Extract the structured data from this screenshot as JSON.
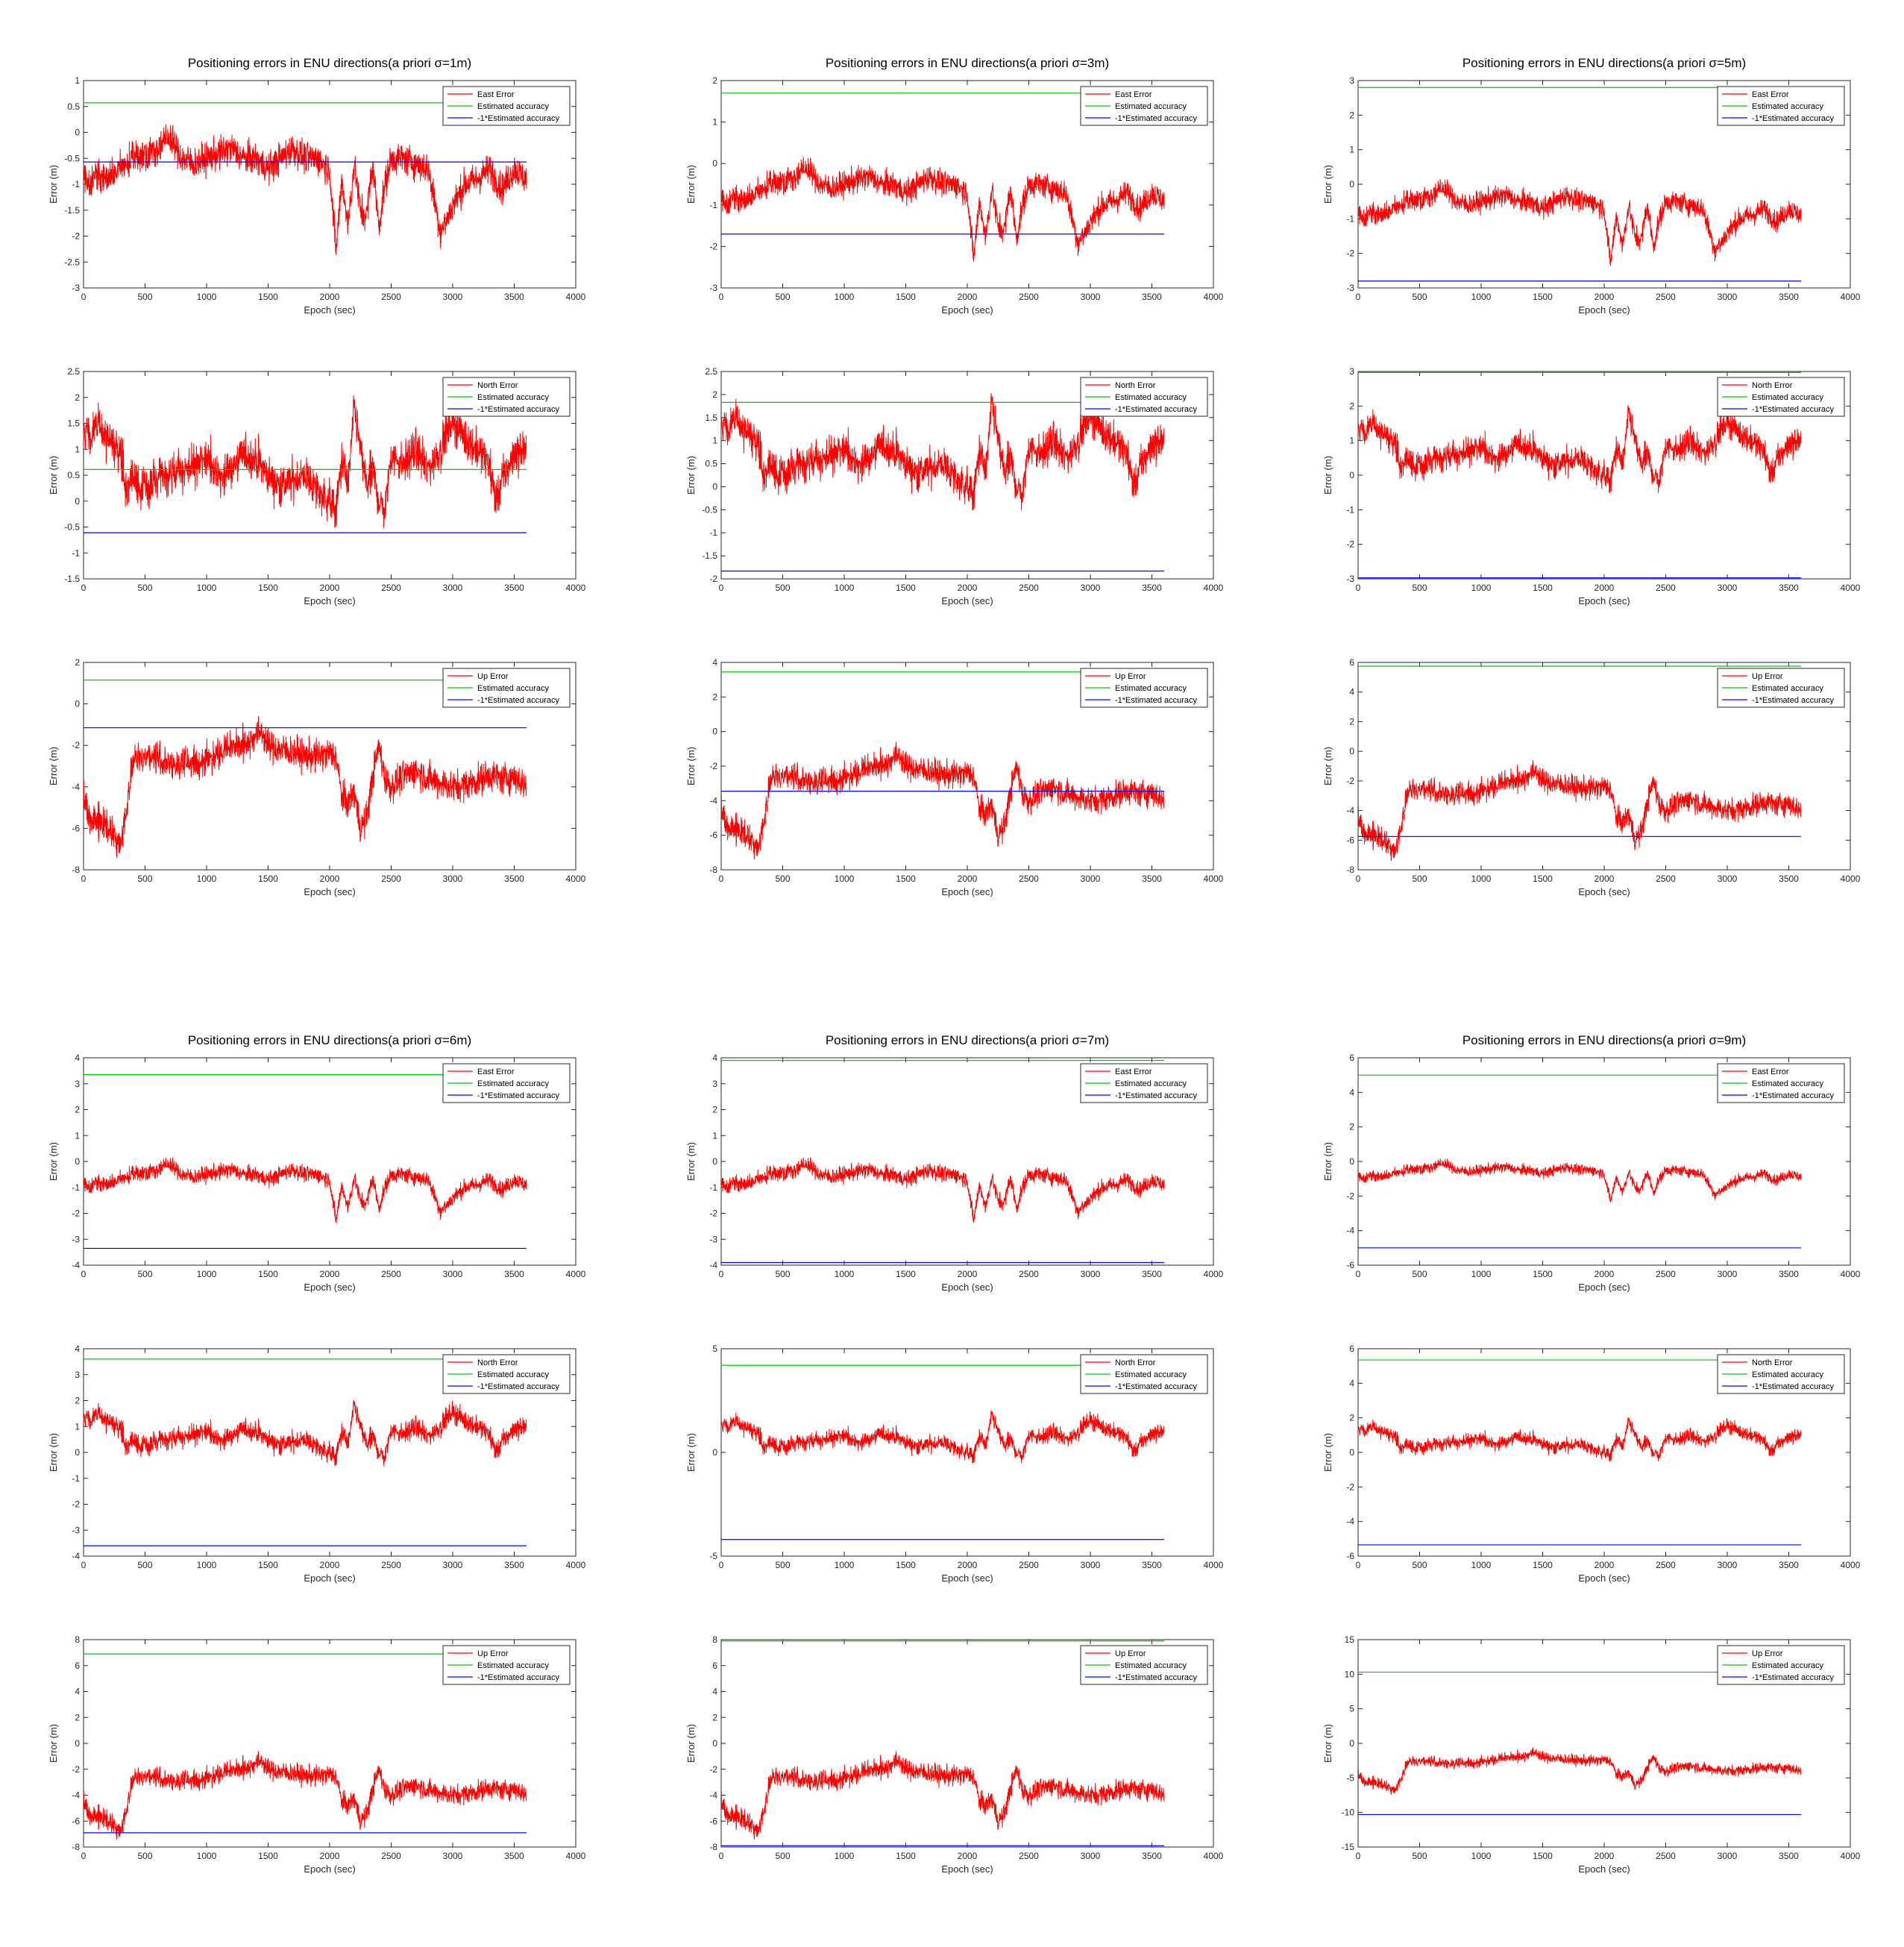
{
  "figure_title_template": "Positioning errors in ENU directions(a priori σ={s}m)",
  "colors": {
    "error": "#ff0000",
    "accuracy_pos": "#00c800",
    "accuracy_neg": "#0000ff",
    "axes": "#262626"
  },
  "legend_labels": {
    "east": "East Error",
    "north": "North Error",
    "up": "Up Error",
    "accuracy": "Estimated accuracy",
    "neg_accuracy": "-1*Estimated accuracy"
  },
  "chart_data": [
    {
      "type": "line",
      "title": "Positioning errors in ENU directions(a priori σ=1m)",
      "panel": "east",
      "xlabel": "Epoch (sec)",
      "ylabel": "Error (m)",
      "xlim": [
        0,
        4000
      ],
      "ylim": [
        -3,
        1
      ],
      "yticks": [
        -3,
        -2.5,
        -2,
        -1.5,
        -1,
        -0.5,
        0,
        0.5,
        1
      ],
      "xticks": [
        0,
        500,
        1000,
        1500,
        2000,
        2500,
        3000,
        3500,
        4000
      ],
      "accuracy": 0.57,
      "legend": [
        "East Error",
        "Estimated accuracy",
        "-1*Estimated accuracy"
      ]
    },
    {
      "type": "line",
      "title": "",
      "panel": "north",
      "xlabel": "Epoch (sec)",
      "ylabel": "Error (m)",
      "xlim": [
        0,
        4000
      ],
      "ylim": [
        -1.5,
        2.5
      ],
      "yticks": [
        -1.5,
        -1,
        -0.5,
        0,
        0.5,
        1,
        1.5,
        2,
        2.5
      ],
      "xticks": [
        0,
        500,
        1000,
        1500,
        2000,
        2500,
        3000,
        3500,
        4000
      ],
      "accuracy": 0.61,
      "legend": [
        "North Error",
        "Estimated accuracy",
        "-1*Estimated accuracy"
      ]
    },
    {
      "type": "line",
      "title": "",
      "panel": "up",
      "xlabel": "Epoch (sec)",
      "ylabel": "Error (m)",
      "xlim": [
        0,
        4000
      ],
      "ylim": [
        -8,
        2
      ],
      "yticks": [
        -8,
        -6,
        -4,
        -2,
        0,
        2
      ],
      "xticks": [
        0,
        500,
        1000,
        1500,
        2000,
        2500,
        3000,
        3500,
        4000
      ],
      "accuracy": 1.15,
      "legend": [
        "Up Error",
        "Estimated accuracy",
        "-1*Estimated accuracy"
      ]
    },
    {
      "type": "line",
      "title": "Positioning errors in ENU directions(a priori σ=3m)",
      "panel": "east",
      "xlabel": "Epoch (sec)",
      "ylabel": "Error (m)",
      "xlim": [
        0,
        4000
      ],
      "ylim": [
        -3,
        2
      ],
      "yticks": [
        -3,
        -2,
        -1,
        0,
        1,
        2
      ],
      "xticks": [
        0,
        500,
        1000,
        1500,
        2000,
        2500,
        3000,
        3500,
        4000
      ],
      "accuracy": 1.7,
      "legend": [
        "East Error",
        "Estimated accuracy",
        "-1*Estimated accuracy"
      ]
    },
    {
      "type": "line",
      "title": "",
      "panel": "north",
      "xlabel": "Epoch (sec)",
      "ylabel": "Error (m)",
      "xlim": [
        0,
        4000
      ],
      "ylim": [
        -2,
        2.5
      ],
      "yticks": [
        -2,
        -1.5,
        -1,
        -0.5,
        0,
        0.5,
        1,
        1.5,
        2,
        2.5
      ],
      "xticks": [
        0,
        500,
        1000,
        1500,
        2000,
        2500,
        3000,
        3500,
        4000
      ],
      "accuracy": 1.83,
      "legend": [
        "North Error",
        "Estimated accuracy",
        "-1*Estimated accuracy"
      ]
    },
    {
      "type": "line",
      "title": "",
      "panel": "up",
      "xlabel": "Epoch (sec)",
      "ylabel": "Error (m)",
      "xlim": [
        0,
        4000
      ],
      "ylim": [
        -8,
        4
      ],
      "yticks": [
        -8,
        -6,
        -4,
        -2,
        0,
        2,
        4
      ],
      "xticks": [
        0,
        500,
        1000,
        1500,
        2000,
        2500,
        3000,
        3500,
        4000
      ],
      "accuracy": 3.45,
      "legend": [
        "Up Error",
        "Estimated accuracy",
        "-1*Estimated accuracy"
      ]
    },
    {
      "type": "line",
      "title": "Positioning errors in ENU directions(a priori σ=5m)",
      "panel": "east",
      "xlabel": "Epoch (sec)",
      "ylabel": "Error (m)",
      "xlim": [
        0,
        4000
      ],
      "ylim": [
        -3,
        3
      ],
      "yticks": [
        -3,
        -2,
        -1,
        0,
        1,
        2,
        3
      ],
      "xticks": [
        0,
        500,
        1000,
        1500,
        2000,
        2500,
        3000,
        3500,
        4000
      ],
      "accuracy": 2.8,
      "legend": [
        "East Error",
        "Estimated accuracy",
        "-1*Estimated accuracy"
      ]
    },
    {
      "type": "line",
      "title": "",
      "panel": "north",
      "xlabel": "Epoch (sec)",
      "ylabel": "Error (m)",
      "xlim": [
        0,
        4000
      ],
      "ylim": [
        -3,
        3
      ],
      "yticks": [
        -3,
        -2,
        -1,
        0,
        1,
        2,
        3
      ],
      "xticks": [
        0,
        500,
        1000,
        1500,
        2000,
        2500,
        3000,
        3500,
        4000
      ],
      "accuracy": 2.97,
      "legend": [
        "North Error",
        "Estimated accuracy",
        "-1*Estimated accuracy"
      ]
    },
    {
      "type": "line",
      "title": "",
      "panel": "up",
      "xlabel": "Epoch (sec)",
      "ylabel": "Error (m)",
      "xlim": [
        0,
        4000
      ],
      "ylim": [
        -8,
        6
      ],
      "yticks": [
        -8,
        -6,
        -4,
        -2,
        0,
        2,
        4,
        6
      ],
      "xticks": [
        0,
        500,
        1000,
        1500,
        2000,
        2500,
        3000,
        3500,
        4000
      ],
      "accuracy": 5.75,
      "legend": [
        "Up Error",
        "Estimated accuracy",
        "-1*Estimated accuracy"
      ]
    },
    {
      "type": "line",
      "title": "Positioning errors in ENU directions(a priori σ=6m)",
      "panel": "east",
      "xlabel": "Epoch (sec)",
      "ylabel": "Error (m)",
      "xlim": [
        0,
        4000
      ],
      "ylim": [
        -4,
        4
      ],
      "yticks": [
        -4,
        -3,
        -2,
        -1,
        0,
        1,
        2,
        3,
        4
      ],
      "xticks": [
        0,
        500,
        1000,
        1500,
        2000,
        2500,
        3000,
        3500,
        4000
      ],
      "accuracy": 3.35,
      "legend": [
        "East Error",
        "Estimated accuracy",
        "-1*Estimated accuracy"
      ]
    },
    {
      "type": "line",
      "title": "",
      "panel": "north",
      "xlabel": "Epoch (sec)",
      "ylabel": "Error (m)",
      "xlim": [
        0,
        4000
      ],
      "ylim": [
        -4,
        4
      ],
      "yticks": [
        -4,
        -3,
        -2,
        -1,
        0,
        1,
        2,
        3,
        4
      ],
      "xticks": [
        0,
        500,
        1000,
        1500,
        2000,
        2500,
        3000,
        3500,
        4000
      ],
      "accuracy": 3.6,
      "legend": [
        "North Error",
        "Estimated accuracy",
        "-1*Estimated accuracy"
      ]
    },
    {
      "type": "line",
      "title": "",
      "panel": "up",
      "xlabel": "Epoch (sec)",
      "ylabel": "Error (m)",
      "xlim": [
        0,
        4000
      ],
      "ylim": [
        -8,
        8
      ],
      "yticks": [
        -8,
        -6,
        -4,
        -2,
        0,
        2,
        4,
        6,
        8
      ],
      "xticks": [
        0,
        500,
        1000,
        1500,
        2000,
        2500,
        3000,
        3500,
        4000
      ],
      "accuracy": 6.9,
      "legend": [
        "Up Error",
        "Estimated accuracy",
        "-1*Estimated accuracy"
      ]
    },
    {
      "type": "line",
      "title": "Positioning errors in ENU directions(a priori σ=7m)",
      "panel": "east",
      "xlabel": "Epoch (sec)",
      "ylabel": "Error (m)",
      "xlim": [
        0,
        4000
      ],
      "ylim": [
        -4,
        4
      ],
      "yticks": [
        -4,
        -3,
        -2,
        -1,
        0,
        1,
        2,
        3,
        4
      ],
      "xticks": [
        0,
        500,
        1000,
        1500,
        2000,
        2500,
        3000,
        3500,
        4000
      ],
      "accuracy": 3.9,
      "legend": [
        "East Error",
        "Estimated accuracy",
        "-1*Estimated accuracy"
      ]
    },
    {
      "type": "line",
      "title": "",
      "panel": "north",
      "xlabel": "Epoch (sec)",
      "ylabel": "Error (m)",
      "xlim": [
        0,
        4000
      ],
      "ylim": [
        -5,
        5
      ],
      "yticks": [
        -5,
        0,
        5
      ],
      "xticks": [
        0,
        500,
        1000,
        1500,
        2000,
        2500,
        3000,
        3500,
        4000
      ],
      "accuracy": 4.2,
      "legend": [
        "North Error",
        "Estimated accuracy",
        "-1*Estimated accuracy"
      ]
    },
    {
      "type": "line",
      "title": "",
      "panel": "up",
      "xlabel": "Epoch (sec)",
      "ylabel": "Error (m)",
      "xlim": [
        0,
        4000
      ],
      "ylim": [
        -8,
        8
      ],
      "yticks": [
        -8,
        -6,
        -4,
        -2,
        0,
        2,
        4,
        6,
        8
      ],
      "xticks": [
        0,
        500,
        1000,
        1500,
        2000,
        2500,
        3000,
        3500,
        4000
      ],
      "accuracy": 7.9,
      "legend": [
        "Up Error",
        "Estimated accuracy",
        "-1*Estimated accuracy"
      ]
    },
    {
      "type": "line",
      "title": "Positioning errors in ENU directions(a priori σ=9m)",
      "panel": "east",
      "xlabel": "Epoch (sec)",
      "ylabel": "Error (m)",
      "xlim": [
        0,
        4000
      ],
      "ylim": [
        -6,
        6
      ],
      "yticks": [
        -6,
        -4,
        -2,
        0,
        2,
        4,
        6
      ],
      "xticks": [
        0,
        500,
        1000,
        1500,
        2000,
        2500,
        3000,
        3500,
        4000
      ],
      "accuracy": 5.0,
      "legend": [
        "East Error",
        "Estimated accuracy",
        "-1*Estimated accuracy"
      ]
    },
    {
      "type": "line",
      "title": "",
      "panel": "north",
      "xlabel": "Epoch (sec)",
      "ylabel": "Error (m)",
      "xlim": [
        0,
        4000
      ],
      "ylim": [
        -6,
        6
      ],
      "yticks": [
        -6,
        -4,
        -2,
        0,
        2,
        4,
        6
      ],
      "xticks": [
        0,
        500,
        1000,
        1500,
        2000,
        2500,
        3000,
        3500,
        4000
      ],
      "accuracy": 5.35,
      "legend": [
        "North Error",
        "Estimated accuracy",
        "-1*Estimated accuracy"
      ]
    },
    {
      "type": "line",
      "title": "",
      "panel": "up",
      "xlabel": "Epoch (sec)",
      "ylabel": "Error (m)",
      "xlim": [
        0,
        4000
      ],
      "ylim": [
        -15,
        15
      ],
      "yticks": [
        -15,
        -10,
        -5,
        0,
        5,
        10,
        15
      ],
      "xticks": [
        0,
        500,
        1000,
        1500,
        2000,
        2500,
        3000,
        3500,
        4000
      ],
      "accuracy": 10.3,
      "legend": [
        "Up Error",
        "Estimated accuracy",
        "-1*Estimated accuracy"
      ]
    }
  ],
  "error_profiles": {
    "east": {
      "x": [
        0,
        50,
        100,
        200,
        300,
        400,
        500,
        600,
        700,
        800,
        900,
        1000,
        1100,
        1200,
        1300,
        1400,
        1500,
        1600,
        1700,
        1800,
        1900,
        2000,
        2050,
        2100,
        2150,
        2200,
        2250,
        2300,
        2350,
        2400,
        2450,
        2500,
        2600,
        2700,
        2800,
        2850,
        2900,
        2950,
        3000,
        3100,
        3200,
        3300,
        3400,
        3500,
        3600
      ],
      "y": [
        -0.8,
        -1.0,
        -0.8,
        -0.9,
        -0.7,
        -0.5,
        -0.4,
        -0.3,
        -0.1,
        -0.5,
        -0.6,
        -0.5,
        -0.4,
        -0.3,
        -0.5,
        -0.5,
        -0.7,
        -0.5,
        -0.3,
        -0.5,
        -0.5,
        -0.7,
        -2.3,
        -0.9,
        -1.8,
        -0.6,
        -1.5,
        -1.6,
        -0.6,
        -1.8,
        -1.0,
        -0.5,
        -0.5,
        -0.6,
        -0.7,
        -1.3,
        -1.9,
        -1.7,
        -1.4,
        -1.0,
        -0.9,
        -0.7,
        -1.1,
        -0.7,
        -0.9
      ]
    },
    "north": {
      "x": [
        0,
        50,
        100,
        200,
        300,
        350,
        400,
        500,
        600,
        700,
        800,
        900,
        1000,
        1100,
        1200,
        1300,
        1400,
        1500,
        1600,
        1700,
        1800,
        1900,
        2000,
        2050,
        2100,
        2150,
        2200,
        2250,
        2300,
        2350,
        2400,
        2450,
        2500,
        2600,
        2700,
        2800,
        2900,
        3000,
        3100,
        3200,
        3300,
        3350,
        3400,
        3500,
        3600
      ],
      "y": [
        1.3,
        1.2,
        1.5,
        1.2,
        1.0,
        0.2,
        0.5,
        0.2,
        0.4,
        0.5,
        0.6,
        0.7,
        0.8,
        0.5,
        0.6,
        0.9,
        0.8,
        0.5,
        0.3,
        0.4,
        0.5,
        0.2,
        0.0,
        -0.2,
        0.8,
        0.3,
        1.8,
        1.0,
        0.3,
        0.6,
        0.0,
        -0.2,
        0.9,
        0.7,
        1.0,
        0.6,
        1.0,
        1.6,
        1.2,
        1.0,
        0.7,
        0.0,
        0.4,
        0.9,
        1.0
      ]
    },
    "up": {
      "x": [
        0,
        50,
        100,
        200,
        250,
        300,
        350,
        400,
        500,
        600,
        700,
        800,
        900,
        1000,
        1100,
        1200,
        1300,
        1400,
        1450,
        1500,
        1600,
        1700,
        1800,
        1900,
        2000,
        2050,
        2100,
        2150,
        2200,
        2250,
        2300,
        2350,
        2400,
        2450,
        2500,
        2600,
        2700,
        2800,
        2900,
        3000,
        3100,
        3200,
        3300,
        3400,
        3500,
        3600
      ],
      "y": [
        -4.5,
        -5.5,
        -5.5,
        -6.0,
        -6.5,
        -6.8,
        -5.0,
        -2.8,
        -2.5,
        -2.6,
        -3.0,
        -2.8,
        -2.9,
        -2.7,
        -2.3,
        -2.0,
        -2.0,
        -1.5,
        -1.3,
        -2.0,
        -2.2,
        -2.3,
        -2.5,
        -2.5,
        -2.4,
        -2.5,
        -4.5,
        -4.8,
        -4.2,
        -6.0,
        -5.5,
        -3.5,
        -2.0,
        -3.6,
        -4.0,
        -3.5,
        -3.2,
        -3.6,
        -3.8,
        -4.0,
        -3.9,
        -3.7,
        -3.4,
        -3.6,
        -3.5,
        -4.0
      ]
    }
  }
}
